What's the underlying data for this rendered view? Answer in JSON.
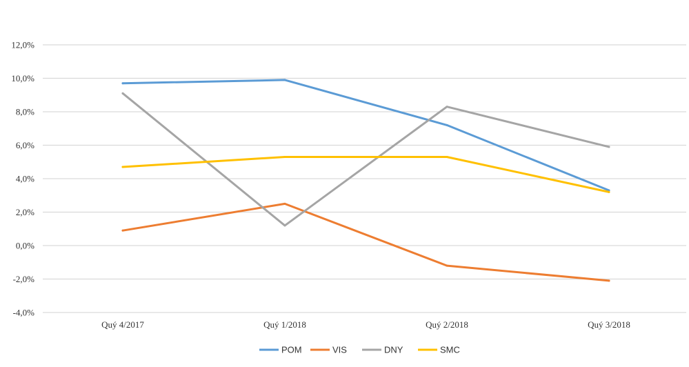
{
  "chart_data": {
    "type": "line",
    "title": "",
    "xlabel": "",
    "ylabel": "",
    "categories": [
      "Quý 4/2017",
      "Quý 1/2018",
      "Quý 2/2018",
      "Quý 3/2018"
    ],
    "ylim": [
      -4,
      12
    ],
    "yticks": [
      -4,
      -2,
      0,
      2,
      4,
      6,
      8,
      10,
      12
    ],
    "ytick_labels": [
      "-4,0%",
      "-2,0%",
      "0,0%",
      "2,0%",
      "4,0%",
      "6,0%",
      "8,0%",
      "10,0%",
      "12,0%"
    ],
    "grid": true,
    "legend_position": "bottom",
    "series": [
      {
        "name": "POM",
        "color": "#5b9bd5",
        "values": [
          9.7,
          9.9,
          7.2,
          3.3
        ]
      },
      {
        "name": "VIS",
        "color": "#ed7d31",
        "values": [
          0.9,
          2.5,
          -1.2,
          -2.1
        ]
      },
      {
        "name": "DNY",
        "color": "#a5a5a5",
        "values": [
          9.1,
          1.2,
          8.3,
          5.9
        ]
      },
      {
        "name": "SMC",
        "color": "#ffc000",
        "values": [
          4.7,
          5.3,
          5.3,
          3.2
        ]
      }
    ]
  }
}
